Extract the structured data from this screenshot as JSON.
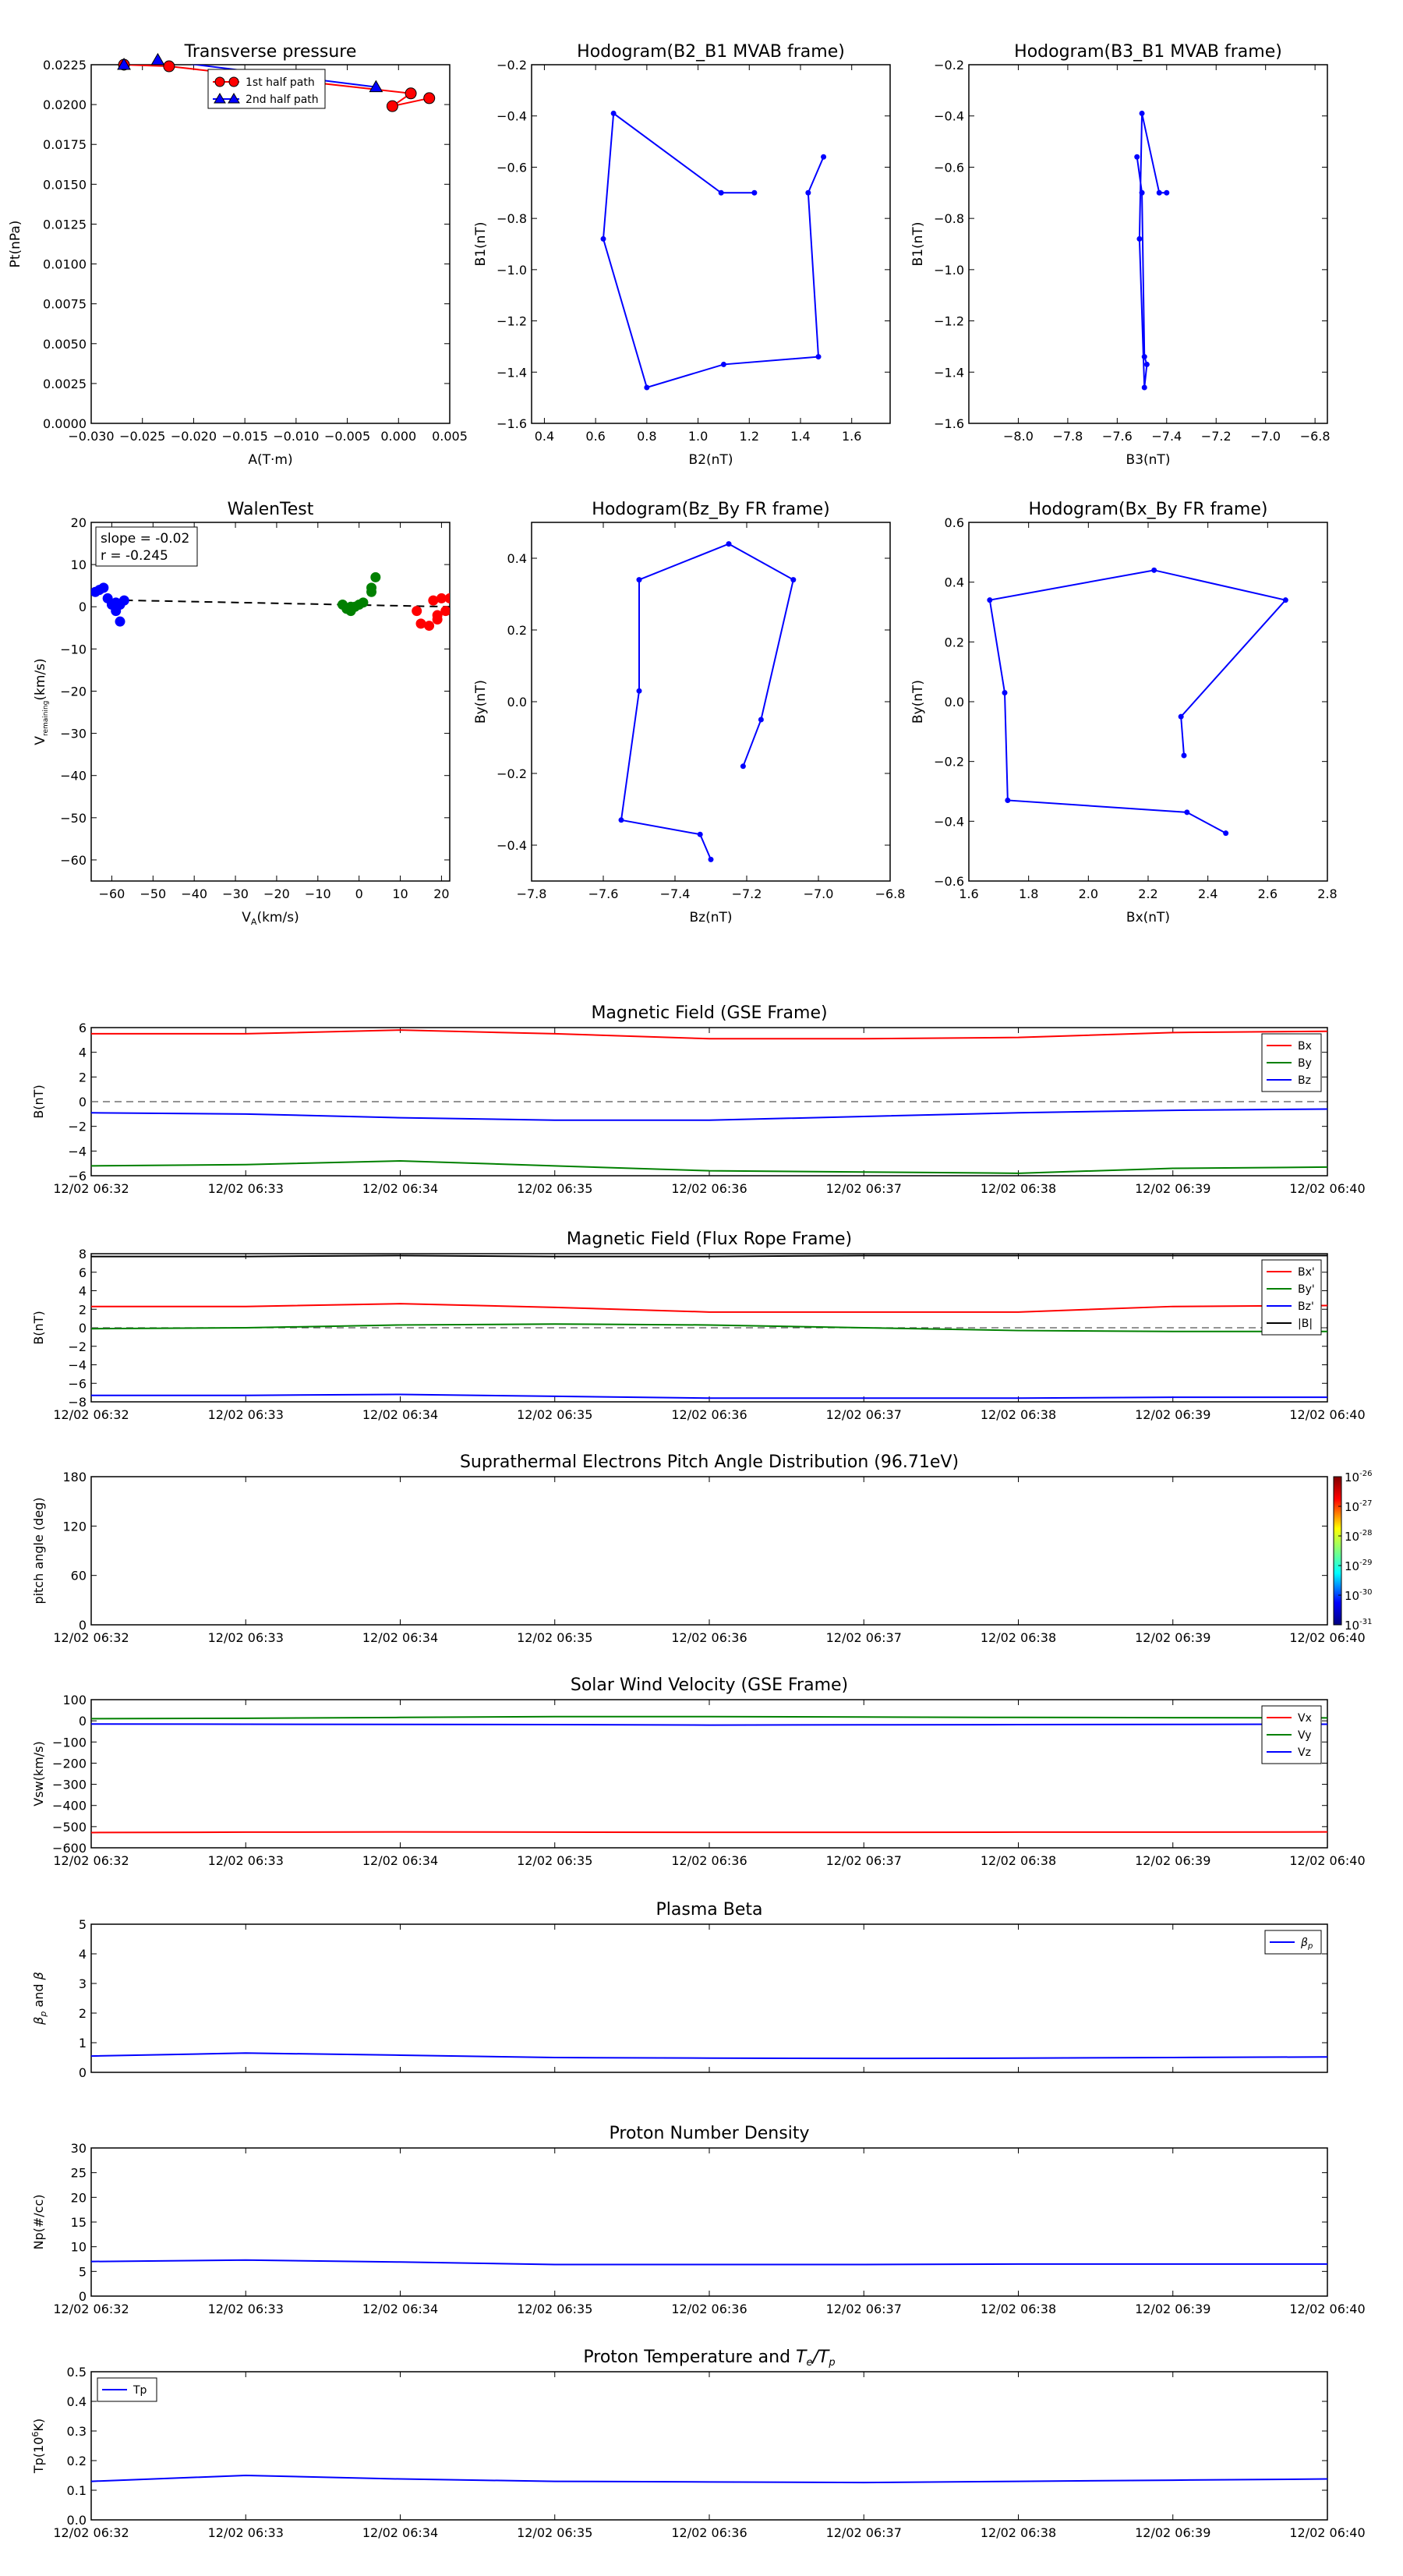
{
  "time_ticks": [
    "12/02 06:32",
    "12/02 06:33",
    "12/02 06:34",
    "12/02 06:35",
    "12/02 06:36",
    "12/02 06:37",
    "12/02 06:38",
    "12/02 06:39",
    "12/02 06:40"
  ],
  "colors": {
    "red": "#ff0000",
    "green": "#008000",
    "blue": "#0000ff",
    "black": "#000000"
  },
  "chart_data": [
    {
      "id": "transverse_pressure",
      "type": "line",
      "title": "Transverse pressure",
      "xlabel": "A(T·m)",
      "ylabel": "Pt(nPa)",
      "xlim": [
        -0.03,
        0.005
      ],
      "ylim": [
        0,
        0.0225
      ],
      "xticks": [
        "−0.030",
        "−0.025",
        "−0.020",
        "−0.015",
        "−0.010",
        "−0.005",
        "0.000",
        "0.005"
      ],
      "yticks": [
        "0.0000",
        "0.0025",
        "0.0050",
        "0.0075",
        "0.0100",
        "0.0125",
        "0.0150",
        "0.0175",
        "0.0200",
        "0.0225"
      ],
      "legend": {
        "position": "top-right",
        "entries": [
          "1st half path",
          "2nd half path"
        ]
      },
      "series": [
        {
          "name": "1st half path",
          "marker": "circle",
          "color": "#ff0000",
          "x": [
            -0.0268,
            -0.0224,
            0.0012,
            -0.0006,
            0.003
          ],
          "y": [
            0.0225,
            0.0224,
            0.0207,
            0.0199,
            0.0204
          ]
        },
        {
          "name": "2nd half path",
          "marker": "triangle",
          "color": "#0000ff",
          "x": [
            -0.0268,
            -0.0235,
            -0.0022
          ],
          "y": [
            0.0225,
            0.0228,
            0.0211
          ]
        }
      ]
    },
    {
      "id": "hodo_b2b1",
      "type": "line",
      "title": "Hodogram(B2_B1 MVAB frame)",
      "xlabel": "B2(nT)",
      "ylabel": "B1(nT)",
      "xlim": [
        0.35,
        1.75
      ],
      "ylim": [
        -1.6,
        -0.2
      ],
      "xticks": [
        "0.4",
        "0.6",
        "0.8",
        "1.0",
        "1.2",
        "1.4",
        "1.6"
      ],
      "yticks": [
        "−1.6",
        "−1.4",
        "−1.2",
        "−1.0",
        "−0.8",
        "−0.6",
        "−0.4",
        "−0.2"
      ],
      "series": [
        {
          "color": "#0000ff",
          "x": [
            1.22,
            1.09,
            0.67,
            0.63,
            0.8,
            1.1,
            1.47,
            1.43,
            1.49
          ],
          "y": [
            -0.7,
            -0.7,
            -0.39,
            -0.88,
            -1.46,
            -1.37,
            -1.34,
            -0.7,
            -0.56
          ]
        }
      ]
    },
    {
      "id": "hodo_b3b1",
      "type": "line",
      "title": "Hodogram(B3_B1 MVAB frame)",
      "xlabel": "B3(nT)",
      "ylabel": "B1(nT)",
      "xlim": [
        -8.2,
        -6.75
      ],
      "ylim": [
        -1.6,
        -0.2
      ],
      "xticks": [
        "−8.0",
        "−7.8",
        "−7.6",
        "−7.4",
        "−7.2",
        "−7.0",
        "−6.8"
      ],
      "yticks": [
        "−1.6",
        "−1.4",
        "−1.2",
        "−1.0",
        "−0.8",
        "−0.6",
        "−0.4",
        "−0.2"
      ],
      "series": [
        {
          "color": "#0000ff",
          "x": [
            -7.4,
            -7.43,
            -7.5,
            -7.51,
            -7.49,
            -7.48,
            -7.49,
            -7.5,
            -7.52
          ],
          "y": [
            -0.7,
            -0.7,
            -0.39,
            -0.88,
            -1.46,
            -1.37,
            -1.34,
            -0.7,
            -0.56
          ]
        }
      ]
    },
    {
      "id": "walen",
      "type": "scatter",
      "title": "WalenTest",
      "xlabel": "V_A(km/s)",
      "ylabel": "V_remaining(km/s)",
      "xlim": [
        -65,
        22
      ],
      "ylim": [
        -65,
        20
      ],
      "xticks": [
        "−60",
        "−50",
        "−40",
        "−30",
        "−20",
        "−10",
        "0",
        "10",
        "20"
      ],
      "yticks": [
        "−60",
        "−50",
        "−40",
        "−30",
        "−20",
        "−10",
        "0",
        "10",
        "20"
      ],
      "annotation": [
        "slope = -0.02",
        "r = -0.245"
      ],
      "fit": {
        "x": [
          -60,
          22
        ],
        "y": [
          1.6,
          0.0
        ]
      },
      "series": [
        {
          "color": "#0000ff",
          "x": [
            -64,
            -63,
            -62,
            -61,
            -60,
            -59,
            -58,
            -57,
            -59,
            -58
          ],
          "y": [
            3.5,
            4,
            4.5,
            2,
            0.5,
            1,
            0.5,
            1.5,
            -1,
            -3.5
          ]
        },
        {
          "color": "#008000",
          "x": [
            -4,
            -3,
            -2,
            -1,
            0,
            1,
            3,
            3,
            4,
            -2
          ],
          "y": [
            0.5,
            -0.5,
            -1,
            0,
            0.5,
            1,
            3.5,
            4.5,
            7,
            0
          ]
        },
        {
          "color": "#ff0000",
          "x": [
            14,
            15,
            17,
            18,
            19,
            19,
            20,
            21,
            22
          ],
          "y": [
            -1,
            -4,
            -4.5,
            1.5,
            -3,
            -2,
            2,
            -1,
            2
          ]
        }
      ]
    },
    {
      "id": "hodo_bzby",
      "type": "line",
      "title": "Hodogram(Bz_By FR frame)",
      "xlabel": "Bz(nT)",
      "ylabel": "By(nT)",
      "xlim": [
        -7.8,
        -6.8
      ],
      "ylim": [
        -0.5,
        0.5
      ],
      "xticks": [
        "−7.8",
        "−7.6",
        "−7.4",
        "−7.2",
        "−7.0",
        "−6.8"
      ],
      "yticks": [
        "−0.4",
        "−0.2",
        "0.0",
        "0.2",
        "0.4"
      ],
      "series": [
        {
          "color": "#0000ff",
          "x": [
            -7.21,
            -7.16,
            -7.07,
            -7.25,
            -7.5,
            -7.5,
            -7.55,
            -7.33,
            -7.3
          ],
          "y": [
            -0.18,
            -0.05,
            0.34,
            0.44,
            0.34,
            0.03,
            -0.33,
            -0.37,
            -0.44
          ]
        }
      ]
    },
    {
      "id": "hodo_bxby",
      "type": "line",
      "title": "Hodogram(Bx_By FR frame)",
      "xlabel": "Bx(nT)",
      "ylabel": "By(nT)",
      "xlim": [
        1.6,
        2.8
      ],
      "ylim": [
        -0.6,
        0.6
      ],
      "xticks": [
        "1.6",
        "1.8",
        "2.0",
        "2.2",
        "2.4",
        "2.6",
        "2.8"
      ],
      "yticks": [
        "−0.6",
        "−0.4",
        "−0.2",
        "0.0",
        "0.2",
        "0.4",
        "0.6"
      ],
      "series": [
        {
          "color": "#0000ff",
          "x": [
            2.32,
            2.31,
            2.66,
            2.22,
            1.67,
            1.72,
            1.73,
            2.33,
            2.46
          ],
          "y": [
            -0.18,
            -0.05,
            0.34,
            0.44,
            0.34,
            0.03,
            -0.33,
            -0.37,
            -0.44
          ]
        }
      ]
    },
    {
      "id": "mag_gse",
      "type": "line",
      "title": "Magnetic Field (GSE Frame)",
      "ylabel": "B(nT)",
      "ylim": [
        -6,
        6
      ],
      "yticks": [
        "−6",
        "−4",
        "−2",
        "0",
        "2",
        "4",
        "6"
      ],
      "show_xtick_labels": true,
      "legend": {
        "position": "top-right",
        "entries": [
          "Bx",
          "By",
          "Bz"
        ]
      },
      "x": [
        0,
        1,
        2,
        3,
        4,
        5,
        6,
        7,
        8
      ],
      "series": [
        {
          "name": "Bx",
          "color": "#ff0000",
          "values": [
            5.5,
            5.5,
            5.8,
            5.5,
            5.1,
            5.1,
            5.2,
            5.6,
            5.7
          ]
        },
        {
          "name": "By",
          "color": "#008000",
          "values": [
            -5.2,
            -5.1,
            -4.8,
            -5.2,
            -5.6,
            -5.7,
            -5.8,
            -5.4,
            -5.3
          ]
        },
        {
          "name": "Bz",
          "color": "#0000ff",
          "values": [
            -0.9,
            -1.0,
            -1.3,
            -1.5,
            -1.5,
            -1.2,
            -0.9,
            -0.7,
            -0.6
          ]
        }
      ]
    },
    {
      "id": "mag_fr",
      "type": "line",
      "title": "Magnetic Field (Flux Rope Frame)",
      "ylabel": "B(nT)",
      "ylim": [
        -8,
        8
      ],
      "yticks": [
        "−8",
        "−6",
        "−4",
        "−2",
        "0",
        "2",
        "4",
        "6",
        "8"
      ],
      "show_xtick_labels": true,
      "legend": {
        "position": "top-right",
        "entries": [
          "Bx'",
          "By'",
          "Bz'",
          "|B|"
        ]
      },
      "x": [
        0,
        1,
        2,
        3,
        4,
        5,
        6,
        7,
        8
      ],
      "series": [
        {
          "name": "Bx'",
          "color": "#ff0000",
          "values": [
            2.3,
            2.3,
            2.6,
            2.2,
            1.7,
            1.7,
            1.7,
            2.3,
            2.4
          ]
        },
        {
          "name": "By'",
          "color": "#008000",
          "values": [
            -0.1,
            0.0,
            0.3,
            0.4,
            0.3,
            0.0,
            -0.3,
            -0.4,
            -0.4
          ]
        },
        {
          "name": "Bz'",
          "color": "#0000ff",
          "values": [
            -7.3,
            -7.3,
            -7.2,
            -7.4,
            -7.6,
            -7.6,
            -7.6,
            -7.5,
            -7.5
          ]
        },
        {
          "name": "|B|",
          "color": "#000000",
          "values": [
            7.7,
            7.7,
            7.8,
            7.7,
            7.7,
            7.8,
            7.8,
            7.8,
            7.8
          ]
        }
      ]
    },
    {
      "id": "pad",
      "type": "heatmap",
      "title": "Suprathermal Electrons Pitch Angle Distribution (96.71eV)",
      "ylabel": "pitch angle (deg)",
      "ylim": [
        0,
        180
      ],
      "yticks": [
        "0",
        "60",
        "120",
        "180"
      ],
      "show_xtick_labels": true,
      "colorbar": {
        "base": "10",
        "exponents": [
          "-26",
          "-27",
          "-28",
          "-29",
          "-30",
          "-31"
        ]
      }
    },
    {
      "id": "vsw",
      "type": "line",
      "title": "Solar Wind Velocity (GSE Frame)",
      "ylabel": "Vsw(km/s)",
      "ylim": [
        -600,
        100
      ],
      "yticks": [
        "−600",
        "−500",
        "−400",
        "−300",
        "−200",
        "−100",
        "0",
        "100"
      ],
      "show_xtick_labels": true,
      "legend": {
        "position": "top-right",
        "entries": [
          "Vx",
          "Vy",
          "Vz"
        ]
      },
      "x": [
        0,
        1,
        2,
        3,
        4,
        5,
        6,
        7,
        8
      ],
      "series": [
        {
          "name": "Vx",
          "color": "#ff0000",
          "values": [
            -528,
            -526,
            -525,
            -526,
            -527,
            -527,
            -526,
            -526,
            -525
          ]
        },
        {
          "name": "Vy",
          "color": "#008000",
          "values": [
            10,
            12,
            16,
            20,
            20,
            18,
            16,
            15,
            14
          ]
        },
        {
          "name": "Vz",
          "color": "#0000ff",
          "values": [
            -15,
            -16,
            -17,
            -18,
            -20,
            -19,
            -18,
            -17,
            -16
          ]
        }
      ]
    },
    {
      "id": "beta",
      "type": "line",
      "title": "Plasma Beta",
      "ylabel": "βp and β",
      "ylim": [
        0,
        5
      ],
      "yticks": [
        "0",
        "1",
        "2",
        "3",
        "4",
        "5"
      ],
      "show_xtick_labels": false,
      "legend": {
        "position": "top-right",
        "entries": [
          "βp"
        ]
      },
      "x": [
        0,
        1,
        2,
        3,
        4,
        5,
        6,
        7,
        8
      ],
      "series": [
        {
          "name": "βp",
          "color": "#0000ff",
          "values": [
            0.55,
            0.65,
            0.58,
            0.5,
            0.48,
            0.47,
            0.48,
            0.5,
            0.52
          ]
        }
      ]
    },
    {
      "id": "np",
      "type": "line",
      "title": "Proton Number Density",
      "ylabel": "Np(#/cc)",
      "ylim": [
        0,
        30
      ],
      "yticks": [
        "0",
        "5",
        "10",
        "15",
        "20",
        "25",
        "30"
      ],
      "show_xtick_labels": true,
      "x": [
        0,
        1,
        2,
        3,
        4,
        5,
        6,
        7,
        8
      ],
      "series": [
        {
          "color": "#0000ff",
          "values": [
            7.0,
            7.3,
            6.9,
            6.4,
            6.4,
            6.4,
            6.5,
            6.5,
            6.5
          ]
        }
      ]
    },
    {
      "id": "tp",
      "type": "line",
      "title": "Proton Temperature and Te/Tp",
      "ylabel": "Tp(10⁶K)",
      "ylim": [
        0,
        0.5
      ],
      "yticks": [
        "0.0",
        "0.1",
        "0.2",
        "0.3",
        "0.4",
        "0.5"
      ],
      "show_xtick_labels": true,
      "legend": {
        "position": "top-left",
        "entries": [
          "Tp"
        ]
      },
      "x": [
        0,
        1,
        2,
        3,
        4,
        5,
        6,
        7,
        8
      ],
      "series": [
        {
          "name": "Tp",
          "color": "#0000ff",
          "values": [
            0.13,
            0.15,
            0.138,
            0.13,
            0.128,
            0.126,
            0.13,
            0.134,
            0.138
          ]
        }
      ]
    }
  ]
}
